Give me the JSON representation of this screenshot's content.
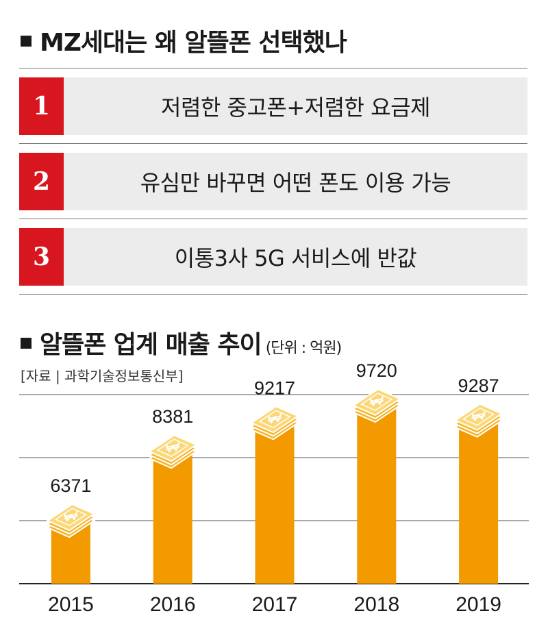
{
  "reasons": {
    "title": "MZ세대는 왜 알뜰폰 선택했나",
    "items": [
      {
        "num": "1",
        "text": "저렴한 중고폰+저렴한 요금제"
      },
      {
        "num": "2",
        "text": "유심만 바꾸면 어떤 폰도 이용 가능"
      },
      {
        "num": "3",
        "text": "이통3사 5G 서비스에 반값"
      }
    ]
  },
  "chart_section": {
    "title": "알뜰폰 업계 매출 추이",
    "unit": "(단위 : 억원)",
    "source": "[자료 | 과학기술정보통신부]"
  },
  "colors": {
    "accent": "#d7161f",
    "bar": "#f29a00",
    "panel": "#ececec"
  },
  "chart_data": {
    "type": "bar",
    "title": "알뜰폰 업계 매출 추이",
    "categories": [
      "2015",
      "2016",
      "2017",
      "2018",
      "2019"
    ],
    "values": [
      6371,
      8381,
      9217,
      9720,
      9287
    ],
    "xlabel": "",
    "ylabel": "(단위 : 억원)",
    "grid": true,
    "bar_icon": "won-money-stack-icon"
  }
}
